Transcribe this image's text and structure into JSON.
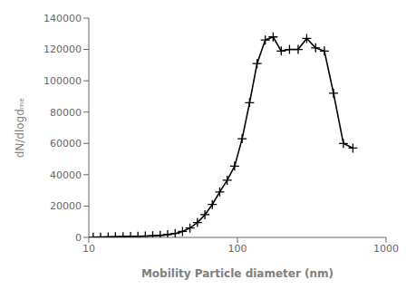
{
  "chart_data": {
    "type": "line",
    "x": [
      10.7,
      12.0,
      13.5,
      15.1,
      17.0,
      19.1,
      21.4,
      24.0,
      26.9,
      30.2,
      33.9,
      38.1,
      42.7,
      47.9,
      53.8,
      60.4,
      67.7,
      76.0,
      85.3,
      95.7,
      107.5,
      120.7,
      135.5,
      153.9,
      173.8,
      196.9,
      223.9,
      256.0,
      292.5,
      335.5,
      384.5,
      443.0,
      516.0,
      598.0
    ],
    "values": [
      100,
      200,
      300,
      400,
      500,
      600,
      700,
      800,
      1000,
      1300,
      1800,
      2500,
      3800,
      6000,
      9500,
      14500,
      21000,
      29000,
      36500,
      45500,
      63000,
      86000,
      111000,
      126000,
      128000,
      119000,
      120000,
      120000,
      127000,
      121000,
      119000,
      92000,
      60000,
      57000
    ],
    "color": "#000000",
    "marker": "+",
    "xlabel": "Mobility Particle diameter (nm)",
    "ylabel": "dN/dlogdₘₑ",
    "xlim": [
      10,
      1000
    ],
    "ylim": [
      0,
      140000
    ],
    "xticks": [
      10,
      100,
      1000
    ],
    "yticks": [
      0,
      20000,
      40000,
      60000,
      80000,
      100000,
      120000,
      140000
    ],
    "log": "x",
    "grid": false
  }
}
